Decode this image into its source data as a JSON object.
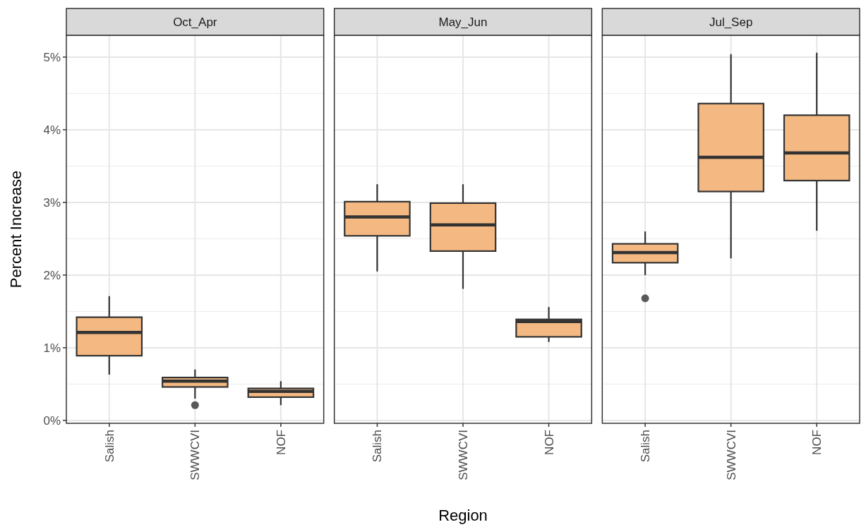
{
  "chart_data": [
    {
      "type": "box",
      "title": "Oct_Apr",
      "ylabel": "Percent Increase",
      "categories": [
        "Salish",
        "SWWCVI",
        "NOF"
      ],
      "color": "#f4b982",
      "ylim": [
        -0.04,
        5.3
      ],
      "yticks": [
        {
          "value": 0,
          "label": "0%"
        },
        {
          "value": 1,
          "label": "1%"
        },
        {
          "value": 2,
          "label": "2%"
        },
        {
          "value": 3,
          "label": "3%"
        },
        {
          "value": 4,
          "label": "4%"
        },
        {
          "value": 5,
          "label": "5%"
        }
      ],
      "grid": true,
      "boxes": [
        {
          "low": 0.63,
          "q1": 0.89,
          "median": 1.21,
          "q3": 1.42,
          "high": 1.71
        },
        {
          "low": 0.3,
          "q1": 0.46,
          "median": 0.54,
          "q3": 0.59,
          "high": 0.7,
          "outliers": [
            0.21
          ]
        },
        {
          "low": 0.21,
          "q1": 0.32,
          "median": 0.4,
          "q3": 0.44,
          "high": 0.54
        }
      ]
    },
    {
      "type": "box",
      "title": "May_Jun",
      "xlabel": "Region",
      "categories": [
        "Salish",
        "SWWCVI",
        "NOF"
      ],
      "color": "#f4b982",
      "ylim": [
        -0.04,
        5.3
      ],
      "yticks": [
        0,
        1,
        2,
        3,
        4,
        5
      ],
      "grid": true,
      "tick_labels": "x",
      "boxes": [
        {
          "low": 2.05,
          "q1": 2.54,
          "median": 2.8,
          "q3": 3.01,
          "high": 3.25
        },
        {
          "low": 1.81,
          "q1": 2.33,
          "median": 2.69,
          "q3": 2.99,
          "high": 3.25
        },
        {
          "low": 1.08,
          "q1": 1.15,
          "median": 1.36,
          "q3": 1.39,
          "high": 1.56
        }
      ]
    },
    {
      "type": "box",
      "title": "Jul_Sep",
      "categories": [
        "Salish",
        "SWWCVI",
        "NOF"
      ],
      "color": "#f4b982",
      "ylim": [
        -0.04,
        5.3
      ],
      "yticks": [
        0,
        1,
        2,
        3,
        4,
        5
      ],
      "grid": true,
      "tick_labels": "x",
      "boxes": [
        {
          "low": 2.0,
          "q1": 2.17,
          "median": 2.31,
          "q3": 2.43,
          "high": 2.6,
          "outliers": [
            1.68
          ]
        },
        {
          "low": 2.23,
          "q1": 3.15,
          "median": 3.62,
          "q3": 4.36,
          "high": 5.04
        },
        {
          "low": 2.61,
          "q1": 3.3,
          "median": 3.68,
          "q3": 4.2,
          "high": 5.06
        }
      ]
    }
  ]
}
